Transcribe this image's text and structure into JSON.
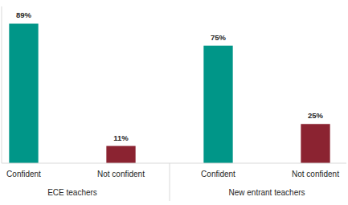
{
  "chart_data": {
    "type": "bar",
    "categories": [
      "ECE teachers",
      "New entrant teachers"
    ],
    "series": [
      {
        "name": "Confident",
        "color": "#009688",
        "values": [
          89,
          75
        ],
        "value_labels": [
          "89%",
          "75%"
        ]
      },
      {
        "name": "Not confident",
        "color": "#8b2331",
        "values": [
          11,
          25
        ],
        "value_labels": [
          "11%",
          "25%"
        ]
      }
    ],
    "ylim": [
      0,
      100
    ],
    "data_labels": true,
    "tick_labels": "x"
  }
}
